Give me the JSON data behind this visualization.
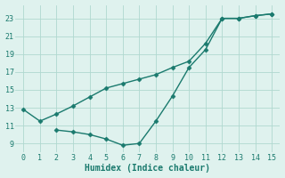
{
  "line1_x": [
    0,
    1,
    2,
    3,
    4,
    5,
    6,
    7,
    8,
    9,
    10,
    11,
    12,
    13,
    14,
    15
  ],
  "line1_y": [
    12.8,
    11.5,
    12.3,
    13.2,
    14.2,
    15.2,
    15.7,
    16.2,
    16.7,
    17.5,
    18.2,
    20.2,
    23.0,
    23.0,
    23.3,
    23.5
  ],
  "line2_x": [
    2,
    3,
    4,
    5,
    6,
    7,
    8,
    9,
    10,
    11,
    12,
    13,
    14,
    15
  ],
  "line2_y": [
    10.5,
    10.3,
    10.0,
    9.5,
    8.8,
    9.0,
    11.5,
    14.3,
    17.5,
    19.5,
    23.0,
    23.0,
    23.3,
    23.5
  ],
  "line_color": "#1a7a6e",
  "bg_color": "#dff2ee",
  "grid_color": "#b0d8d0",
  "xlabel": "Humidex (Indice chaleur)",
  "xlim": [
    -0.5,
    15.5
  ],
  "ylim": [
    8.0,
    24.5
  ],
  "xticks": [
    0,
    1,
    2,
    3,
    4,
    5,
    6,
    7,
    8,
    9,
    10,
    11,
    12,
    13,
    14,
    15
  ],
  "yticks": [
    9,
    11,
    13,
    15,
    17,
    19,
    21,
    23
  ],
  "marker": "D",
  "markersize": 2.5,
  "linewidth": 1.0,
  "tick_fontsize": 6,
  "xlabel_fontsize": 7
}
